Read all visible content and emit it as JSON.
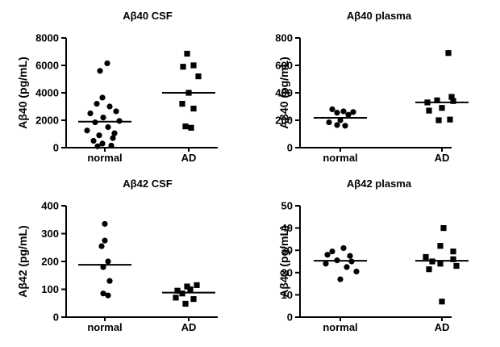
{
  "chart_data": [
    {
      "type": "scatter",
      "title": "Aβ40 CSF",
      "ylabel": "Aβ40 (pg/mL)",
      "ylim": [
        0,
        8000
      ],
      "yticks": [
        "0",
        "2000",
        "4000",
        "6000",
        "8000"
      ],
      "categories": [
        "normal",
        "AD"
      ],
      "series": [
        {
          "category": "normal",
          "marker": "circle",
          "mean": 1900,
          "values": [
            6150,
            5600,
            3650,
            3200,
            3000,
            2650,
            2500,
            2200,
            1950,
            1850,
            1500,
            1250,
            1050,
            900,
            700,
            500,
            300,
            150,
            100
          ]
        },
        {
          "category": "AD",
          "marker": "square",
          "mean": 4000,
          "values": [
            6850,
            6000,
            5900,
            5200,
            4000,
            3200,
            2850,
            1550,
            1450
          ]
        }
      ]
    },
    {
      "type": "scatter",
      "title": "Aβ40 plasma",
      "ylabel": "Aβ40 (pg/mL)",
      "ylim": [
        0,
        800
      ],
      "yticks": [
        "0",
        "200",
        "400",
        "600",
        "800"
      ],
      "categories": [
        "normal",
        "AD"
      ],
      "series": [
        {
          "category": "normal",
          "marker": "circle",
          "mean": 218,
          "values": [
            280,
            265,
            260,
            255,
            240,
            200,
            185,
            165,
            160
          ]
        },
        {
          "category": "AD",
          "marker": "square",
          "mean": 330,
          "values": [
            690,
            370,
            345,
            340,
            330,
            290,
            270,
            205,
            200
          ]
        }
      ]
    },
    {
      "type": "scatter",
      "title": "Aβ42 CSF",
      "ylabel": "Aβ42 (pg/mL)",
      "ylim": [
        0,
        400
      ],
      "yticks": [
        "0",
        "100",
        "200",
        "300",
        "400"
      ],
      "categories": [
        "normal",
        "AD"
      ],
      "series": [
        {
          "category": "normal",
          "marker": "circle",
          "mean": 188,
          "values": [
            335,
            275,
            255,
            200,
            180,
            130,
            85,
            78
          ]
        },
        {
          "category": "AD",
          "marker": "square",
          "mean": 88,
          "values": [
            115,
            110,
            100,
            95,
            85,
            70,
            65,
            48
          ]
        }
      ]
    },
    {
      "type": "scatter",
      "title": "Aβ42 plasma",
      "ylabel": "Aβ42 (pg/mL)",
      "ylim": [
        0,
        50
      ],
      "yticks": [
        "0",
        "10",
        "20",
        "30",
        "40",
        "50"
      ],
      "categories": [
        "normal",
        "AD"
      ],
      "series": [
        {
          "category": "normal",
          "marker": "circle",
          "mean": 25.3,
          "values": [
            31,
            29.5,
            28,
            27.5,
            25.5,
            25,
            24,
            22.5,
            20.5,
            17
          ]
        },
        {
          "category": "AD",
          "marker": "square",
          "mean": 25.3,
          "values": [
            40,
            32,
            29.5,
            27,
            26,
            25,
            24,
            23,
            21.5,
            7
          ]
        }
      ]
    }
  ]
}
